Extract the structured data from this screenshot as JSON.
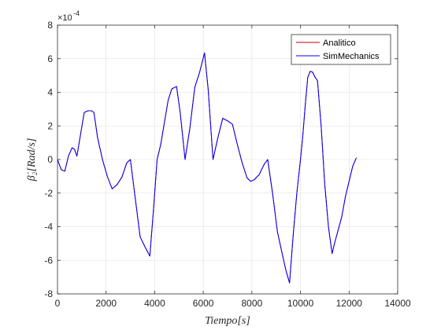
{
  "chart_data": {
    "type": "line",
    "xlabel": "Tiempo[s]",
    "ylabel": "β̇₂[Rad/s]",
    "y_exponent_label": "×10",
    "y_exponent": "-4",
    "xlim": [
      0,
      14000
    ],
    "ylim": [
      -8,
      8
    ],
    "x_ticks": [
      "0",
      "2000",
      "4000",
      "6000",
      "8000",
      "10000",
      "12000",
      "14000"
    ],
    "y_ticks": [
      "-8",
      "-6",
      "-4",
      "-2",
      "0",
      "2",
      "4",
      "6",
      "8"
    ],
    "grid": true,
    "legend_position": "top-right",
    "series": [
      {
        "name": "Analitico",
        "color": "#c00000",
        "x": [
          0,
          150,
          300,
          450,
          600,
          700,
          800,
          950,
          1100,
          1250,
          1400,
          1500,
          1650,
          1850,
          2050,
          2250,
          2450,
          2650,
          2850,
          3000,
          3200,
          3400,
          3600,
          3800,
          3950,
          4100,
          4250,
          4400,
          4550,
          4700,
          4900,
          5050,
          5250,
          5450,
          5650,
          5850,
          6050,
          6200,
          6400,
          6600,
          6800,
          7000,
          7200,
          7400,
          7600,
          7800,
          7950,
          8100,
          8300,
          8500,
          8650,
          8850,
          9050,
          9200,
          9400,
          9550,
          9700,
          9850,
          10000,
          10100,
          10200,
          10300,
          10400,
          10500,
          10600,
          10700,
          10850,
          11000,
          11150,
          11300,
          11400,
          11550,
          11700,
          11850,
          12000,
          12150,
          12300
        ],
        "values": [
          0,
          -0.6,
          -0.7,
          0.2,
          0.7,
          0.6,
          0.2,
          1.5,
          2.8,
          2.9,
          2.9,
          2.8,
          1.3,
          0,
          -1.0,
          -1.75,
          -1.5,
          -1.05,
          -0.2,
          0,
          -2.3,
          -4.6,
          -5.2,
          -5.75,
          -3.0,
          0,
          0.9,
          2.2,
          3.5,
          4.2,
          4.35,
          2.8,
          0,
          1.9,
          4.3,
          5.2,
          6.35,
          4.2,
          0,
          1.3,
          2.45,
          2.3,
          2.1,
          0.9,
          -0.2,
          -1.1,
          -1.3,
          -1.2,
          -0.9,
          -0.3,
          0,
          -2.0,
          -4.3,
          -5.3,
          -6.6,
          -7.35,
          -4.5,
          -2.0,
          0,
          1.5,
          3.3,
          4.9,
          5.25,
          5.2,
          4.9,
          4.7,
          2.0,
          -1.5,
          -4.0,
          -5.6,
          -5.0,
          -4.2,
          -3.4,
          -2.2,
          -1.3,
          -0.4,
          0.1
        ]
      },
      {
        "name": "SimMechanics",
        "color": "#0000ff",
        "x": [
          0,
          150,
          300,
          450,
          600,
          700,
          800,
          950,
          1100,
          1250,
          1400,
          1500,
          1650,
          1850,
          2050,
          2250,
          2450,
          2650,
          2850,
          3000,
          3200,
          3400,
          3600,
          3800,
          3950,
          4100,
          4250,
          4400,
          4550,
          4700,
          4900,
          5050,
          5250,
          5450,
          5650,
          5850,
          6050,
          6200,
          6400,
          6600,
          6800,
          7000,
          7200,
          7400,
          7600,
          7800,
          7950,
          8100,
          8300,
          8500,
          8650,
          8850,
          9050,
          9200,
          9400,
          9550,
          9700,
          9850,
          10000,
          10100,
          10200,
          10300,
          10400,
          10500,
          10600,
          10700,
          10850,
          11000,
          11150,
          11300,
          11400,
          11550,
          11700,
          11850,
          12000,
          12150,
          12300
        ],
        "values": [
          0,
          -0.6,
          -0.7,
          0.2,
          0.7,
          0.6,
          0.2,
          1.5,
          2.8,
          2.9,
          2.9,
          2.8,
          1.3,
          0,
          -1.0,
          -1.75,
          -1.5,
          -1.05,
          -0.2,
          0,
          -2.3,
          -4.6,
          -5.2,
          -5.75,
          -3.0,
          0,
          0.9,
          2.2,
          3.5,
          4.2,
          4.35,
          2.8,
          0,
          1.9,
          4.3,
          5.2,
          6.35,
          4.2,
          0,
          1.3,
          2.45,
          2.3,
          2.1,
          0.9,
          -0.2,
          -1.1,
          -1.3,
          -1.2,
          -0.9,
          -0.3,
          0,
          -2.0,
          -4.3,
          -5.3,
          -6.6,
          -7.35,
          -4.5,
          -2.0,
          0,
          1.5,
          3.3,
          4.9,
          5.25,
          5.2,
          4.9,
          4.7,
          2.0,
          -1.5,
          -4.0,
          -5.6,
          -5.0,
          -4.2,
          -3.4,
          -2.2,
          -1.3,
          -0.4,
          0.1
        ]
      }
    ]
  }
}
